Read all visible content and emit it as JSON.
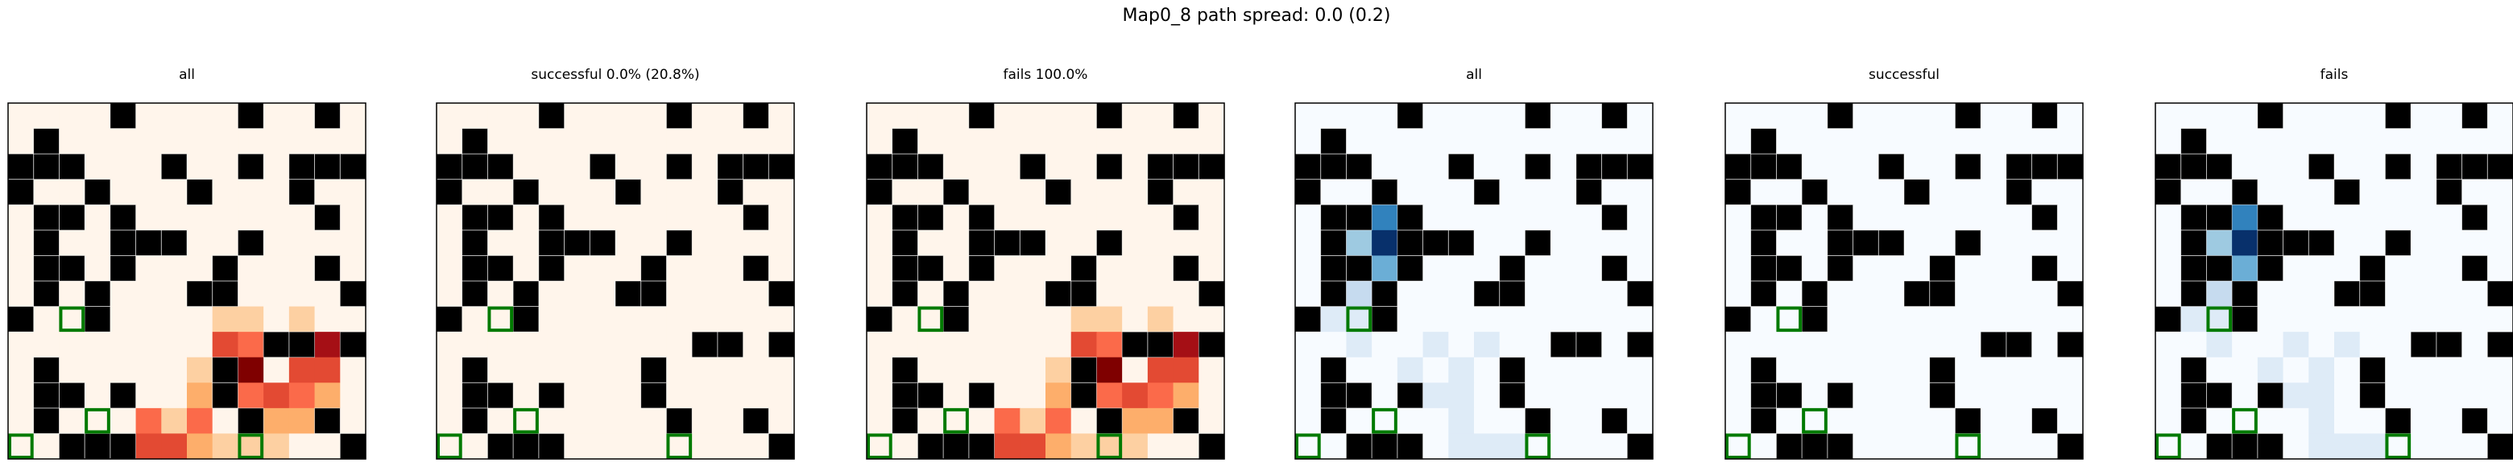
{
  "figure": {
    "suptitle": "Map0_8 path spread: 0.0 (0.2)"
  },
  "colors": {
    "obstacle": "#000000",
    "highlight_box": "#007a00",
    "frame": "#000000",
    "reds_ramp": [
      "#fff5eb",
      "#fdd0a2",
      "#fdae6b",
      "#fb6a4a",
      "#e34a33",
      "#a50f15",
      "#7f0000"
    ],
    "blues_ramp": [
      "#f7fbff",
      "#deebf7",
      "#c6dbef",
      "#9ecae1",
      "#6baed6",
      "#3182bd",
      "#08306b"
    ]
  },
  "chart_data": [
    {
      "type": "heatmap",
      "title": "all",
      "colormap": "reds_ramp",
      "grid_size": [
        14,
        14
      ],
      "highlighted_cells": [
        [
          2,
          8
        ],
        [
          3,
          12
        ],
        [
          9,
          13
        ],
        [
          0,
          13
        ]
      ]
    },
    {
      "type": "heatmap",
      "title": "successful 0.0% (20.8%)",
      "colormap": "reds_ramp",
      "grid_size": [
        14,
        14
      ],
      "highlighted_cells": [
        [
          2,
          8
        ],
        [
          3,
          12
        ],
        [
          9,
          13
        ],
        [
          0,
          13
        ]
      ]
    },
    {
      "type": "heatmap",
      "title": "fails 100.0%",
      "colormap": "reds_ramp",
      "grid_size": [
        14,
        14
      ],
      "highlighted_cells": [
        [
          2,
          8
        ],
        [
          3,
          12
        ],
        [
          9,
          13
        ],
        [
          0,
          13
        ]
      ]
    },
    {
      "type": "heatmap",
      "title": "all",
      "colormap": "blues_ramp",
      "grid_size": [
        14,
        14
      ],
      "highlighted_cells": [
        [
          2,
          8
        ],
        [
          3,
          12
        ],
        [
          9,
          13
        ],
        [
          0,
          13
        ]
      ]
    },
    {
      "type": "heatmap",
      "title": "successful",
      "colormap": "blues_ramp",
      "grid_size": [
        14,
        14
      ],
      "highlighted_cells": [
        [
          2,
          8
        ],
        [
          3,
          12
        ],
        [
          9,
          13
        ],
        [
          0,
          13
        ]
      ]
    },
    {
      "type": "heatmap",
      "title": "fails",
      "colormap": "blues_ramp",
      "grid_size": [
        14,
        14
      ],
      "highlighted_cells": [
        [
          2,
          8
        ],
        [
          3,
          12
        ],
        [
          9,
          13
        ],
        [
          0,
          13
        ]
      ]
    }
  ]
}
